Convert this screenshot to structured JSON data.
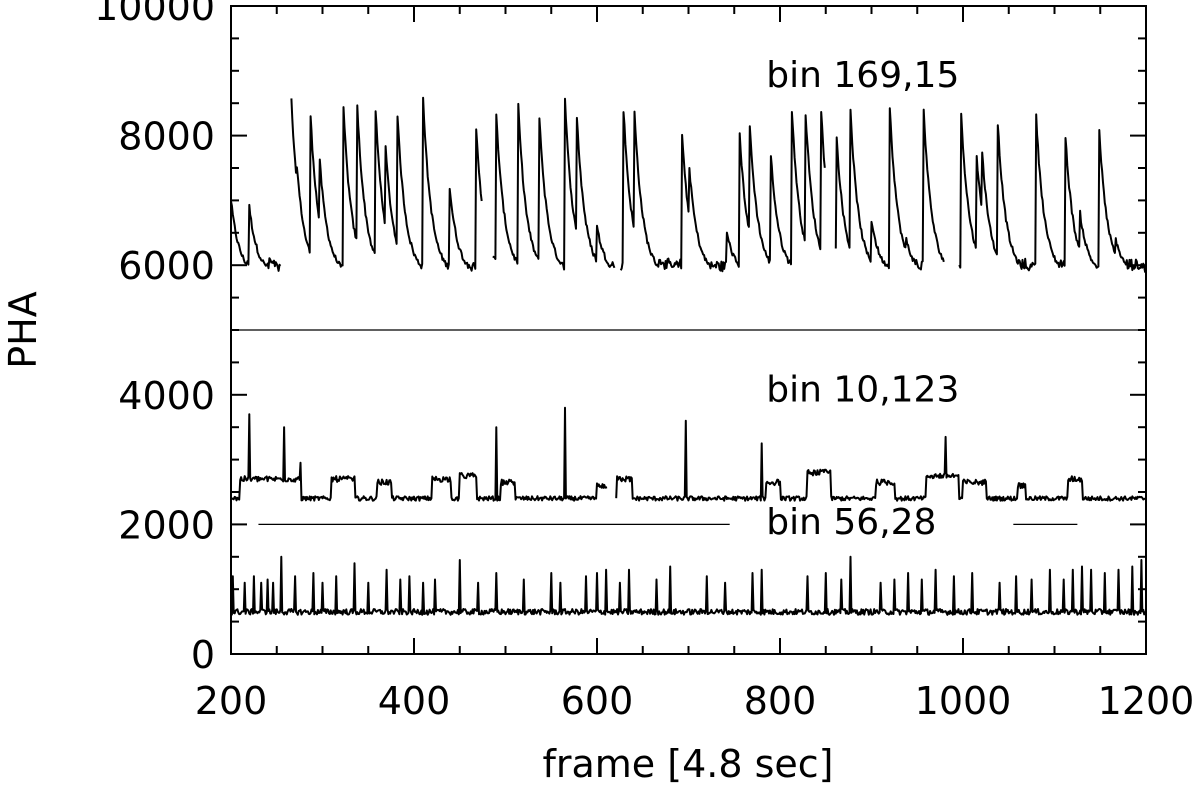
{
  "chart_data": {
    "type": "line",
    "title": "",
    "xlabel": "frame [4.8 sec]",
    "ylabel": "PHA",
    "xlim": [
      200,
      1200
    ],
    "ylim": [
      0,
      10000
    ],
    "x_ticks": [
      200,
      400,
      600,
      800,
      1000,
      1200
    ],
    "y_ticks": [
      0,
      2000,
      4000,
      6000,
      8000,
      10000
    ],
    "grid": false,
    "legend": "none",
    "line_color": "#000000",
    "separators": [
      {
        "y": 5000,
        "segments": [
          [
            200,
            1200
          ]
        ]
      },
      {
        "y": 2000,
        "segments": [
          [
            230,
            745
          ],
          [
            1055,
            1125
          ]
        ]
      }
    ],
    "series": [
      {
        "name": "bin 169,15",
        "label_at": [
          785,
          8750
        ],
        "baseline": 5850,
        "gaps": [
          [
            255,
            265
          ],
          [
            475,
            485
          ],
          [
            620,
            625
          ],
          [
            850,
            860
          ],
          [
            980,
            995
          ]
        ],
        "peaks": [
          {
            "x": 200,
            "y": 7000
          },
          {
            "x": 220,
            "y": 6900
          },
          {
            "x": 242,
            "y": 6100
          },
          {
            "x": 266,
            "y": 8550
          },
          {
            "x": 272,
            "y": 7550
          },
          {
            "x": 287,
            "y": 8300
          },
          {
            "x": 297,
            "y": 7600
          },
          {
            "x": 323,
            "y": 8400
          },
          {
            "x": 338,
            "y": 8450
          },
          {
            "x": 358,
            "y": 8400
          },
          {
            "x": 369,
            "y": 7800
          },
          {
            "x": 382,
            "y": 8300
          },
          {
            "x": 410,
            "y": 8550
          },
          {
            "x": 439,
            "y": 7200
          },
          {
            "x": 468,
            "y": 8100
          },
          {
            "x": 490,
            "y": 8300
          },
          {
            "x": 514,
            "y": 8450
          },
          {
            "x": 537,
            "y": 8300
          },
          {
            "x": 565,
            "y": 8550
          },
          {
            "x": 578,
            "y": 8300
          },
          {
            "x": 600,
            "y": 6600
          },
          {
            "x": 629,
            "y": 8400
          },
          {
            "x": 641,
            "y": 8350
          },
          {
            "x": 668,
            "y": 6100
          },
          {
            "x": 693,
            "y": 8000
          },
          {
            "x": 701,
            "y": 7500
          },
          {
            "x": 742,
            "y": 6500
          },
          {
            "x": 756,
            "y": 8000
          },
          {
            "x": 767,
            "y": 8150
          },
          {
            "x": 790,
            "y": 7700
          },
          {
            "x": 813,
            "y": 8400
          },
          {
            "x": 828,
            "y": 8350
          },
          {
            "x": 845,
            "y": 8400
          },
          {
            "x": 862,
            "y": 7950
          },
          {
            "x": 877,
            "y": 8400
          },
          {
            "x": 900,
            "y": 6700
          },
          {
            "x": 920,
            "y": 8450
          },
          {
            "x": 938,
            "y": 6400
          },
          {
            "x": 957,
            "y": 8400
          },
          {
            "x": 998,
            "y": 8350
          },
          {
            "x": 1015,
            "y": 7700
          },
          {
            "x": 1021,
            "y": 7750
          },
          {
            "x": 1038,
            "y": 8200
          },
          {
            "x": 1080,
            "y": 8300
          },
          {
            "x": 1112,
            "y": 8000
          },
          {
            "x": 1128,
            "y": 6800
          },
          {
            "x": 1149,
            "y": 8050
          },
          {
            "x": 1167,
            "y": 6400
          }
        ]
      },
      {
        "name": "bin 10,123",
        "label_at": [
          785,
          3900
        ],
        "baseline": 2400,
        "gaps": [
          [
            612,
            620
          ]
        ],
        "plateaus": [
          [
            210,
            275,
            2700
          ],
          [
            310,
            335,
            2700
          ],
          [
            360,
            375,
            2650
          ],
          [
            420,
            440,
            2700
          ],
          [
            450,
            468,
            2750
          ],
          [
            495,
            510,
            2650
          ],
          [
            600,
            612,
            2600
          ],
          [
            622,
            638,
            2700
          ],
          [
            785,
            800,
            2650
          ],
          [
            830,
            855,
            2800
          ],
          [
            905,
            925,
            2650
          ],
          [
            960,
            995,
            2750
          ],
          [
            1000,
            1025,
            2650
          ],
          [
            1060,
            1068,
            2600
          ],
          [
            1115,
            1130,
            2700
          ]
        ],
        "spikes": [
          {
            "x": 220,
            "y": 3700
          },
          {
            "x": 258,
            "y": 3500
          },
          {
            "x": 276,
            "y": 2950
          },
          {
            "x": 490,
            "y": 3500
          },
          {
            "x": 565,
            "y": 3800
          },
          {
            "x": 697,
            "y": 3600
          },
          {
            "x": 780,
            "y": 3250
          },
          {
            "x": 981,
            "y": 3350
          }
        ]
      },
      {
        "name": "bin 56,28",
        "label_at": [
          785,
          1850
        ],
        "baseline": 650,
        "spikes": [
          {
            "x": 202,
            "y": 1200
          },
          {
            "x": 215,
            "y": 1100
          },
          {
            "x": 225,
            "y": 1200
          },
          {
            "x": 233,
            "y": 1100
          },
          {
            "x": 240,
            "y": 1150
          },
          {
            "x": 246,
            "y": 1100
          },
          {
            "x": 255,
            "y": 1500
          },
          {
            "x": 270,
            "y": 1200
          },
          {
            "x": 290,
            "y": 1250
          },
          {
            "x": 300,
            "y": 1100
          },
          {
            "x": 315,
            "y": 1200
          },
          {
            "x": 335,
            "y": 1400
          },
          {
            "x": 350,
            "y": 1100
          },
          {
            "x": 370,
            "y": 1300
          },
          {
            "x": 385,
            "y": 1150
          },
          {
            "x": 395,
            "y": 1200
          },
          {
            "x": 410,
            "y": 1100
          },
          {
            "x": 423,
            "y": 1150
          },
          {
            "x": 450,
            "y": 1450
          },
          {
            "x": 470,
            "y": 1100
          },
          {
            "x": 490,
            "y": 1250
          },
          {
            "x": 520,
            "y": 1150
          },
          {
            "x": 550,
            "y": 1250
          },
          {
            "x": 560,
            "y": 1100
          },
          {
            "x": 588,
            "y": 1200
          },
          {
            "x": 600,
            "y": 1250
          },
          {
            "x": 610,
            "y": 1300
          },
          {
            "x": 625,
            "y": 1100
          },
          {
            "x": 635,
            "y": 1300
          },
          {
            "x": 665,
            "y": 1150
          },
          {
            "x": 680,
            "y": 1350
          },
          {
            "x": 720,
            "y": 1200
          },
          {
            "x": 740,
            "y": 1100
          },
          {
            "x": 770,
            "y": 1250
          },
          {
            "x": 780,
            "y": 1300
          },
          {
            "x": 830,
            "y": 1200
          },
          {
            "x": 850,
            "y": 1250
          },
          {
            "x": 867,
            "y": 1150
          },
          {
            "x": 877,
            "y": 1500
          },
          {
            "x": 910,
            "y": 1100
          },
          {
            "x": 925,
            "y": 1150
          },
          {
            "x": 940,
            "y": 1250
          },
          {
            "x": 955,
            "y": 1150
          },
          {
            "x": 970,
            "y": 1300
          },
          {
            "x": 990,
            "y": 1200
          },
          {
            "x": 1010,
            "y": 1250
          },
          {
            "x": 1040,
            "y": 1100
          },
          {
            "x": 1058,
            "y": 1200
          },
          {
            "x": 1075,
            "y": 1150
          },
          {
            "x": 1095,
            "y": 1300
          },
          {
            "x": 1110,
            "y": 1150
          },
          {
            "x": 1120,
            "y": 1300
          },
          {
            "x": 1130,
            "y": 1350
          },
          {
            "x": 1140,
            "y": 1300
          },
          {
            "x": 1155,
            "y": 1250
          },
          {
            "x": 1170,
            "y": 1300
          },
          {
            "x": 1185,
            "y": 1350
          },
          {
            "x": 1195,
            "y": 1450
          }
        ]
      }
    ]
  }
}
